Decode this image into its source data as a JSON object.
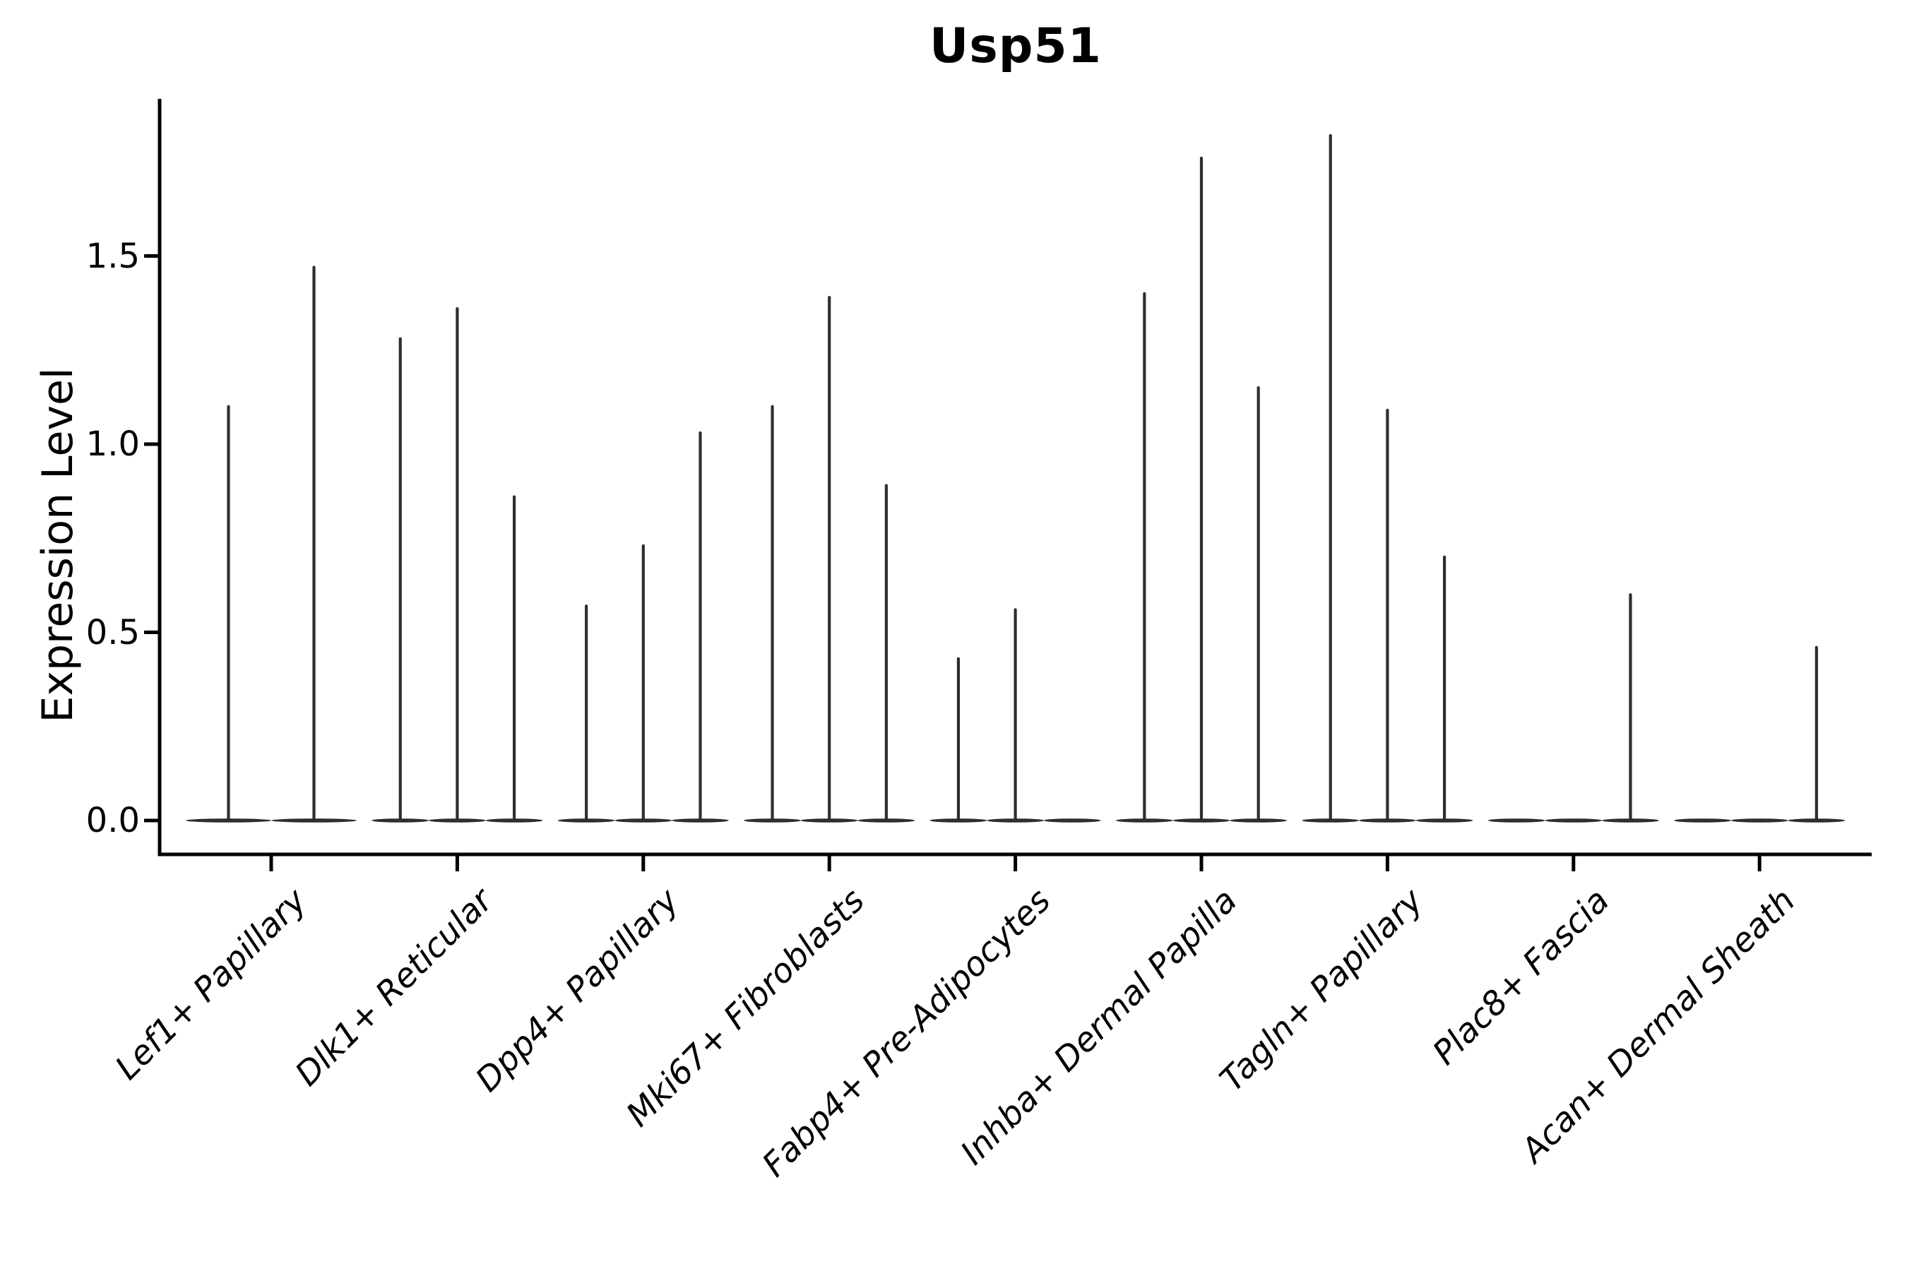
{
  "chart_data": {
    "type": "violin",
    "title": "Usp51",
    "ylabel": "Expression Level",
    "xlabel": "",
    "y_ticks": [
      "0.0",
      "0.5",
      "1.0",
      "1.5"
    ],
    "y_tick_values": [
      0.0,
      0.5,
      1.0,
      1.5
    ],
    "ylim": [
      -0.09,
      1.92
    ],
    "grid": false,
    "legend_position": "none",
    "violin_color": "#2e2e2e",
    "axis_color": "#000000",
    "background_color": "#ffffff",
    "categories": [
      {
        "label": "Lef1+ Papillary",
        "violin_max_values": [
          1.1,
          1.47
        ]
      },
      {
        "label": "Dlk1+ Reticular",
        "violin_max_values": [
          1.28,
          1.36,
          0.86
        ]
      },
      {
        "label": "Dpp4+ Papillary",
        "violin_max_values": [
          0.57,
          0.73,
          1.03
        ]
      },
      {
        "label": "Mki67+ Fibroblasts",
        "violin_max_values": [
          1.1,
          1.39,
          0.89
        ]
      },
      {
        "label": "Fabp4+ Pre-Adipocytes",
        "violin_max_values": [
          0.43,
          0.56,
          0
        ]
      },
      {
        "label": "Inhba+ Dermal Papilla",
        "violin_max_values": [
          1.4,
          1.76,
          1.15
        ]
      },
      {
        "label": "Tagln+ Papillary",
        "violin_max_values": [
          1.82,
          1.09,
          0.7
        ]
      },
      {
        "label": "Plac8+ Fascia",
        "violin_max_values": [
          0,
          0,
          0.6
        ]
      },
      {
        "label": "Acan+ Dermal Sheath",
        "violin_max_values": [
          0,
          0,
          0.46
        ]
      }
    ]
  }
}
